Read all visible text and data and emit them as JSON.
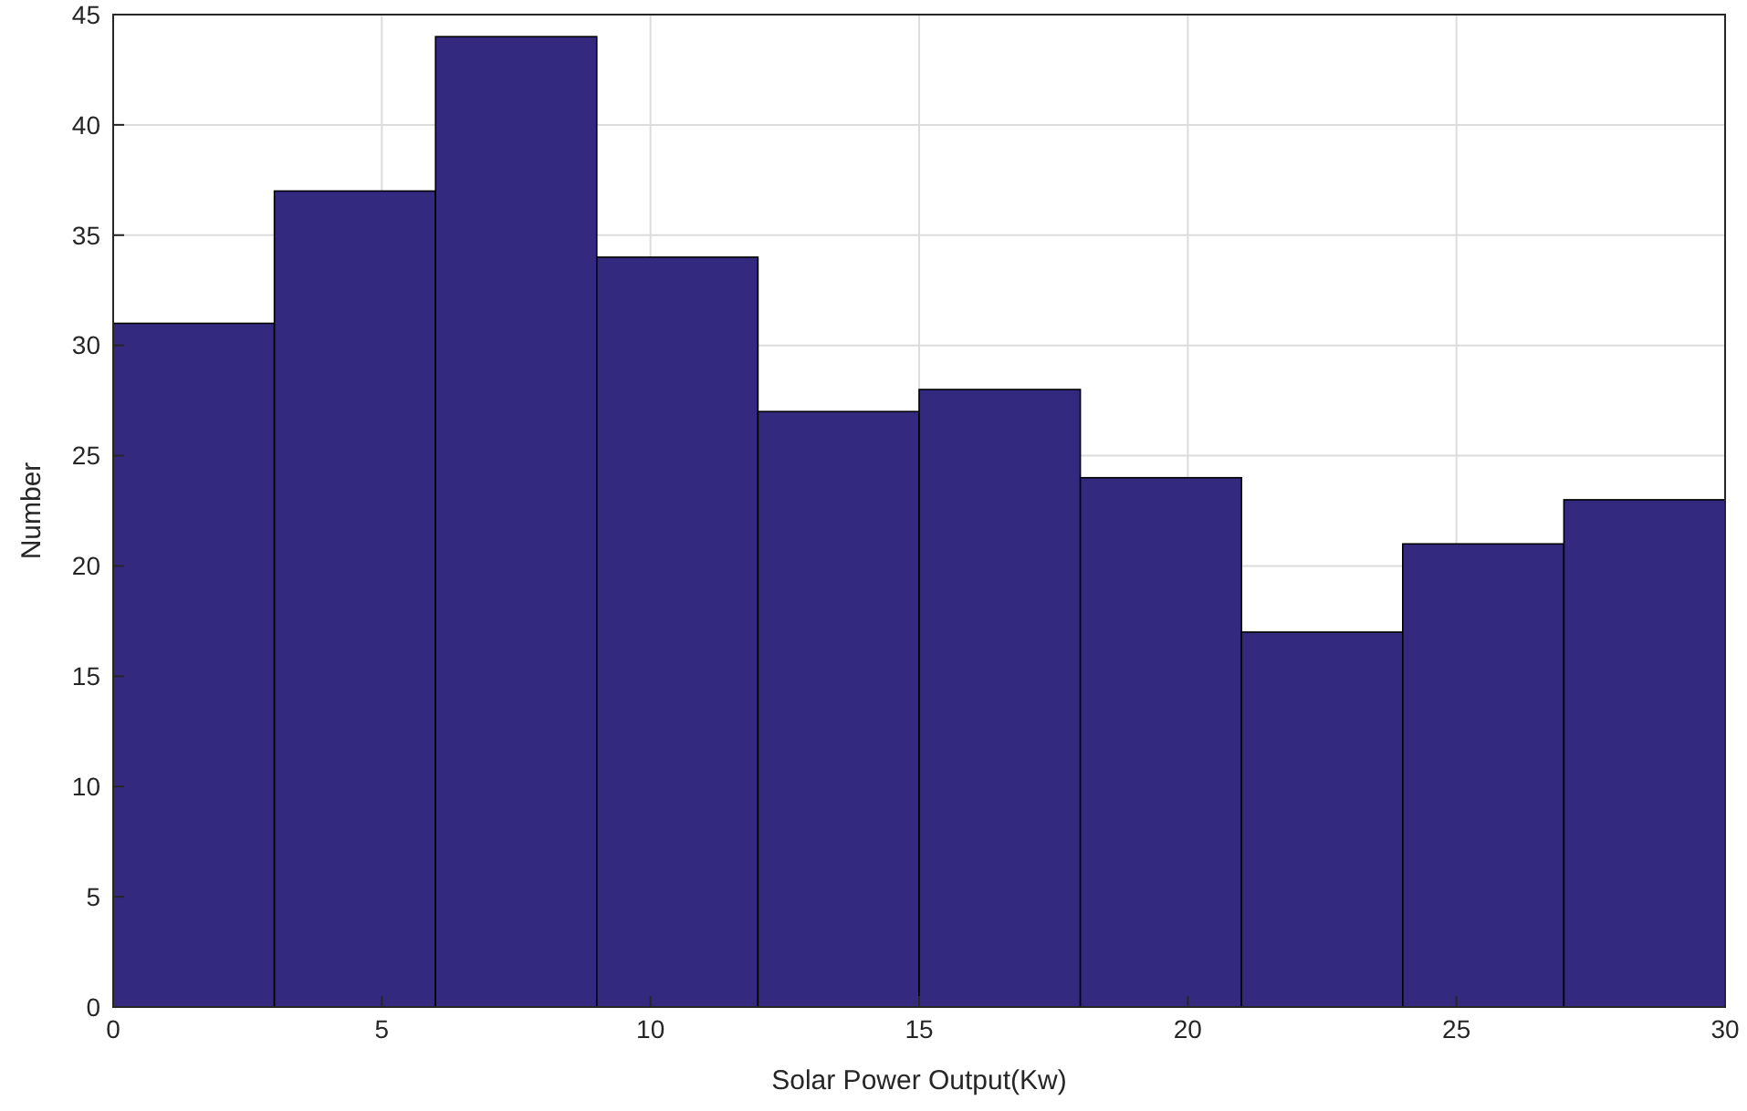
{
  "chart_data": {
    "type": "histogram",
    "xlabel": "Solar Power Output(Kw)",
    "ylabel": "Number",
    "bins": [
      0,
      3,
      6,
      9,
      12,
      15,
      18,
      21,
      24,
      27,
      30
    ],
    "values": [
      31,
      37,
      44,
      34,
      27,
      28,
      24,
      17,
      21,
      23
    ],
    "color": "#332a80",
    "xlim": [
      0,
      30
    ],
    "xticks": [
      0,
      5,
      10,
      15,
      20,
      25,
      30
    ],
    "ylim": [
      0,
      45
    ],
    "yticks": [
      0,
      5,
      10,
      15,
      20,
      25,
      30,
      35,
      40,
      45
    ],
    "grid": true
  }
}
